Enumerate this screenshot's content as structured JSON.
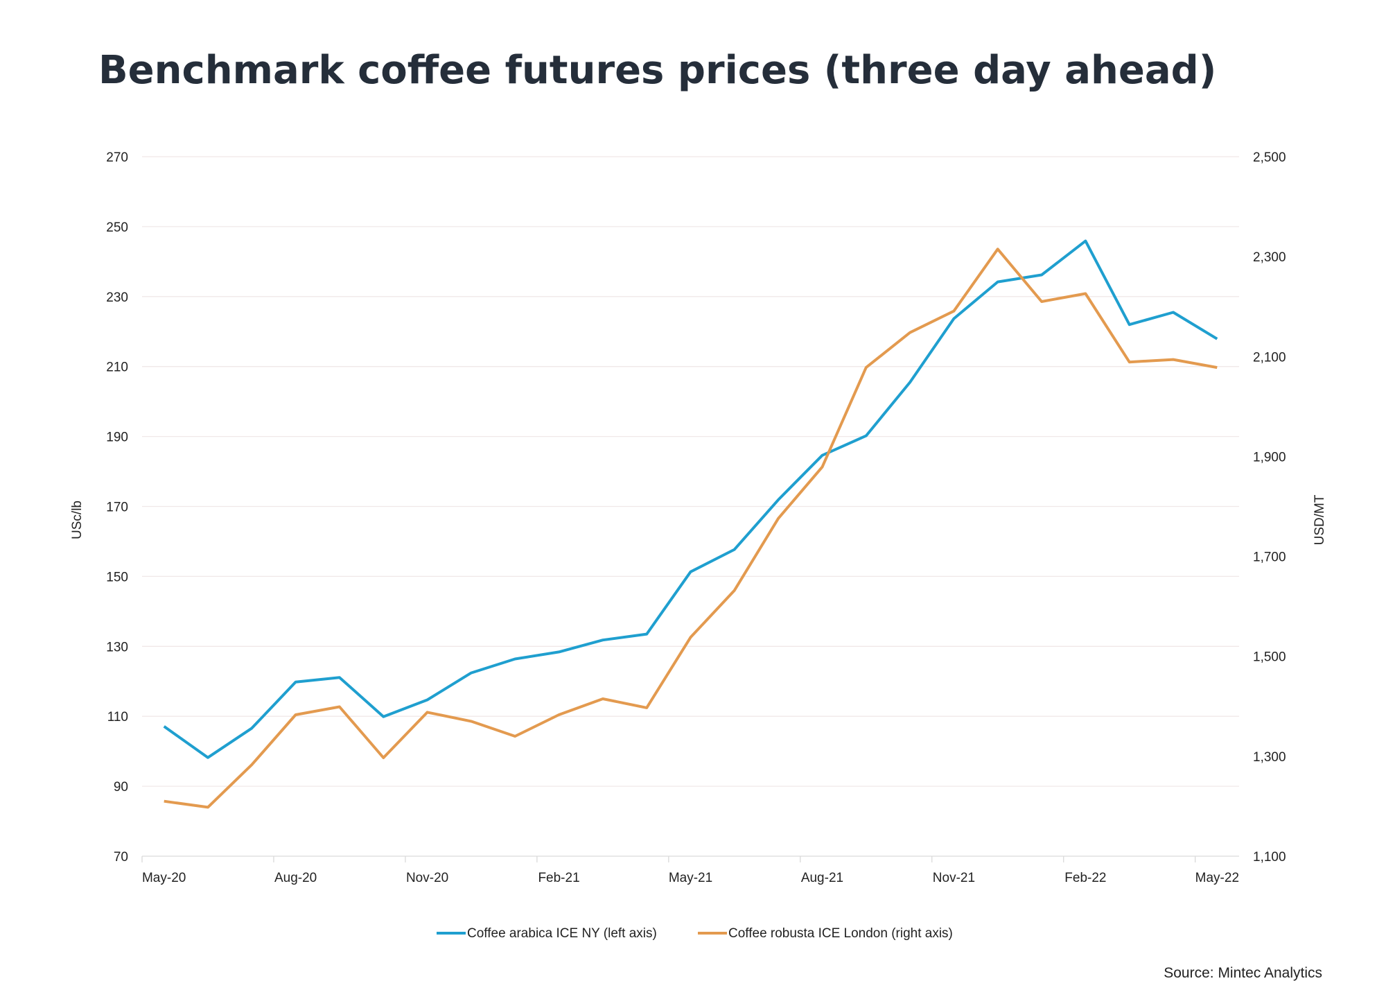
{
  "chart_data": {
    "type": "line",
    "title": "Benchmark coffee futures prices (three day ahead)",
    "source": "Source: Mintec Analytics",
    "ylabel_left": "USc/lb",
    "ylabel_right": "USD/MT",
    "ylim_left": [
      70,
      270
    ],
    "ylim_right": [
      1100,
      2500
    ],
    "yticks_left": [
      "270",
      "250",
      "230",
      "210",
      "190",
      "170",
      "150",
      "130",
      "110",
      "90",
      "70"
    ],
    "yticks_right": [
      "2,500",
      "2,300",
      "2,100",
      "1,900",
      "1,700",
      "1,500",
      "1,300",
      "1,100"
    ],
    "x": [
      "May-20",
      "Jun-20",
      "Jul-20",
      "Aug-20",
      "Sep-20",
      "Oct-20",
      "Nov-20",
      "Dec-20",
      "Jan-21",
      "Feb-21",
      "Mar-21",
      "Apr-21",
      "May-21",
      "Jun-21",
      "Jul-21",
      "Aug-21",
      "Sep-21",
      "Oct-21",
      "Nov-21",
      "Dec-21",
      "Jan-22",
      "Feb-22",
      "Mar-22",
      "Apr-22",
      "May-22"
    ],
    "xtick_labels": [
      "May-20",
      "Aug-20",
      "Nov-20",
      "Feb-21",
      "May-21",
      "Aug-21",
      "Nov-21",
      "Feb-22",
      "May-22"
    ],
    "grid": true,
    "legend_placement": "bottom",
    "series": [
      {
        "name": "Coffee arabica ICE NY (left axis)",
        "axis": "left",
        "color": "#1f9fcf",
        "values": [
          107.1,
          98.2,
          106.6,
          119.8,
          121.1,
          109.9,
          114.7,
          122.4,
          126.4,
          128.4,
          131.8,
          133.5,
          151.3,
          157.7,
          171.9,
          184.6,
          190.2,
          205.5,
          223.7,
          234.2,
          236.2,
          245.9,
          222.0,
          225.5,
          217.9
        ]
      },
      {
        "name": "Coffee robusta ICE London (right axis)",
        "axis": "right",
        "color": "#e39a4f",
        "values": [
          1210,
          1198,
          1283,
          1383,
          1399,
          1297,
          1388,
          1370,
          1340,
          1383,
          1415,
          1397,
          1538,
          1632,
          1776,
          1879,
          2078,
          2148,
          2191,
          2315,
          2210,
          2226,
          2089,
          2094,
          2078
        ]
      }
    ]
  }
}
